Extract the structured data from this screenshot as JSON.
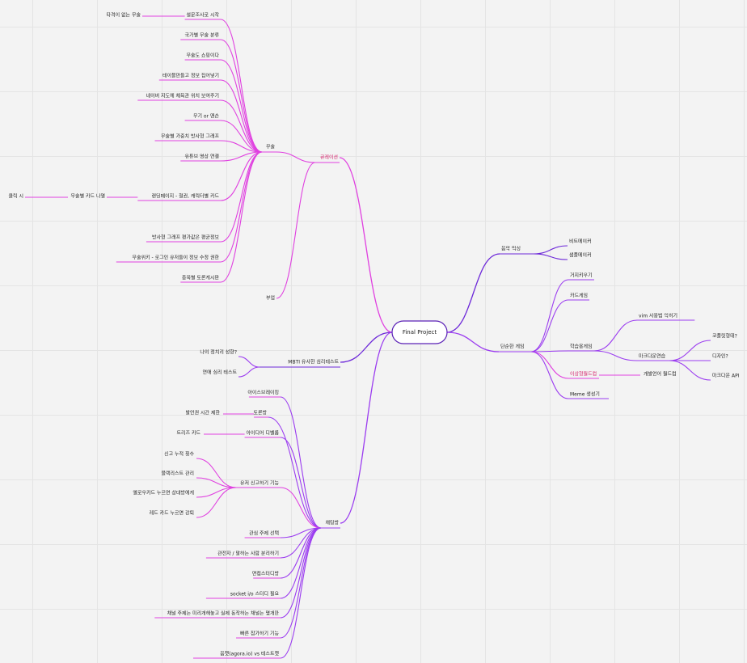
{
  "root": {
    "label": "Final Project"
  },
  "left": {
    "curation": {
      "label": "큐레이션",
      "martial": {
        "label": "무술",
        "children": [
          {
            "label": "설문조사로 시작",
            "children": [
              {
                "label": "타격이 없는 무술"
              }
            ]
          },
          {
            "label": "국가별 무술 분류"
          },
          {
            "label": "무술도 쇼핑이다"
          },
          {
            "label": "테이블만들고 정보 집어넣기"
          },
          {
            "label": "네이버 지도에 체육관 위치 보여주기"
          },
          {
            "label": "무기 or 맨손"
          },
          {
            "label": "무술별 가중치 방사형 그래프"
          },
          {
            "label": "유튜브 영상 연결"
          },
          {
            "label": "랜딩페이지 - 철권, 캐릭터별 카드",
            "children": [
              {
                "label": "무술별 카드 나열",
                "children": [
                  {
                    "label": "클릭 시"
                  }
                ]
              }
            ]
          },
          {
            "label": "방사형 그래프 평가값은 평균정보"
          },
          {
            "label": "무술위키 - 로그인 유저들이 정보 수정 권한"
          },
          {
            "label": "종목별 토론게시판"
          }
        ]
      },
      "sub": {
        "label": "부업"
      }
    },
    "mbti": {
      "label": "MBTI 유사한 심리테스트",
      "children": [
        {
          "label": "나의 정치리 성향?"
        },
        {
          "label": "연애 심리 테스트"
        }
      ]
    },
    "chat": {
      "label": "채팅방",
      "children": [
        {
          "label": "아이스브레이킹"
        },
        {
          "label": "토론방",
          "children": [
            {
              "label": "발언권 시간 제한"
            }
          ]
        },
        {
          "label": "아이디어 디벨롭",
          "children": [
            {
              "label": "트리즈 카드"
            }
          ]
        },
        {
          "label": "유저 신고하기 기능",
          "children": [
            {
              "label": "신고 누적 횟수"
            },
            {
              "label": "블랙리스트 관리"
            },
            {
              "label": "옐로우카드 누르면 상대방에게"
            },
            {
              "label": "레드 카드 누르면 강퇴"
            }
          ]
        },
        {
          "label": "관심 주제 선택"
        },
        {
          "label": "관전자 / 말하는 사람 분리하기"
        },
        {
          "label": "면접스터디방"
        },
        {
          "label": "socket i/o 스터디 필요"
        },
        {
          "label": "채널 주제는 미리개해놓고 실제 동작하는 채널는 몇개만"
        },
        {
          "label": "빠른 참가하기 기능"
        },
        {
          "label": "음챗(agora.io) vs 테스트챗"
        }
      ]
    }
  },
  "right": {
    "music": {
      "label": "음악 믹싱",
      "children": [
        {
          "label": "비트메이커"
        },
        {
          "label": "샘플메이커"
        }
      ]
    },
    "game": {
      "label": "단순한 게임",
      "children": [
        {
          "label": "거지키우기"
        },
        {
          "label": "카드게임"
        },
        {
          "label": "학습용게임",
          "children": [
            {
              "label": "vim 사용법 익히기"
            },
            {
              "label": "마크다운연습",
              "children": [
                {
                  "label": "코플릿형태?"
                },
                {
                  "label": "디자인?"
                },
                {
                  "label": "마크다운 API"
                }
              ]
            }
          ]
        },
        {
          "label": "이상형월드컵",
          "children": [
            {
              "label": "개발언어 월드컵"
            }
          ]
        },
        {
          "label": "Meme 생성기"
        }
      ]
    }
  },
  "colors": {
    "magenta": "#e040e0",
    "purple": "#6d28d9",
    "violet": "#9b3cf0",
    "accent_text": "#d6246e",
    "root_border": "#5b21b6"
  }
}
